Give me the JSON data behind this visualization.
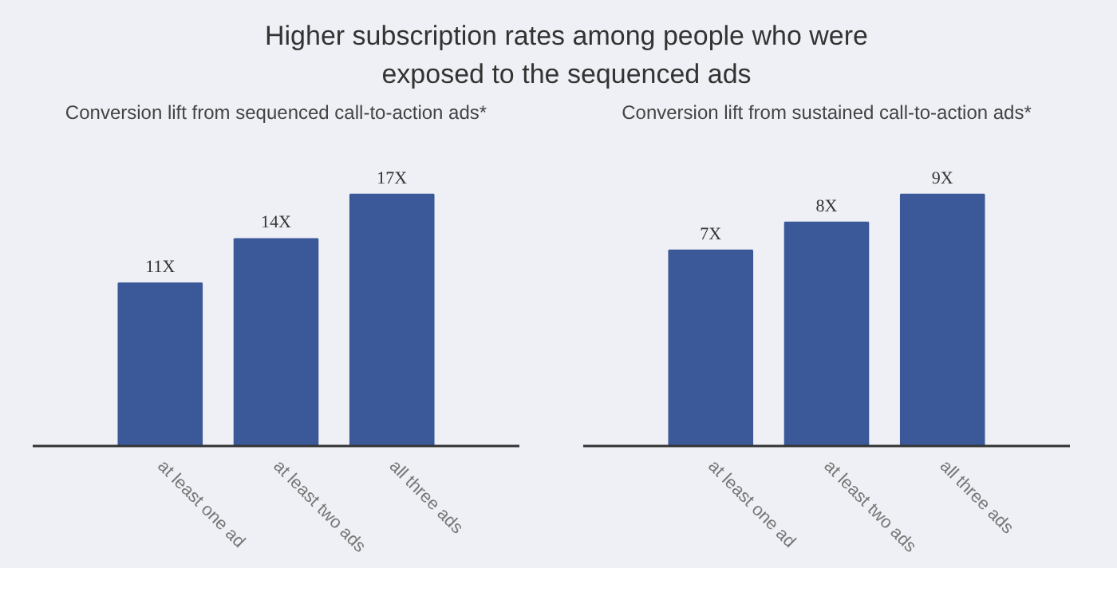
{
  "chart_data": [
    {
      "type": "bar",
      "title": "Higher subscription rates among people who were exposed to the sequenced ads",
      "subtitle": "Conversion lift from sequenced call-to-action ads*",
      "categories": [
        "at least one ad",
        "at least two ads",
        "all three ads"
      ],
      "values": [
        11,
        14,
        17
      ],
      "value_labels": [
        "11X",
        "14X",
        "17X"
      ],
      "color": "#3b5998",
      "tick_labels": "x",
      "grid": false
    },
    {
      "type": "bar",
      "subtitle": "Conversion lift from sustained call-to-action ads*",
      "categories": [
        "at least one ad",
        "at least two ads",
        "all three ads"
      ],
      "values": [
        7,
        8,
        9
      ],
      "value_labels": [
        "7X",
        "8X",
        "9X"
      ],
      "color": "#3b5998",
      "tick_labels": "x",
      "grid": false
    }
  ]
}
